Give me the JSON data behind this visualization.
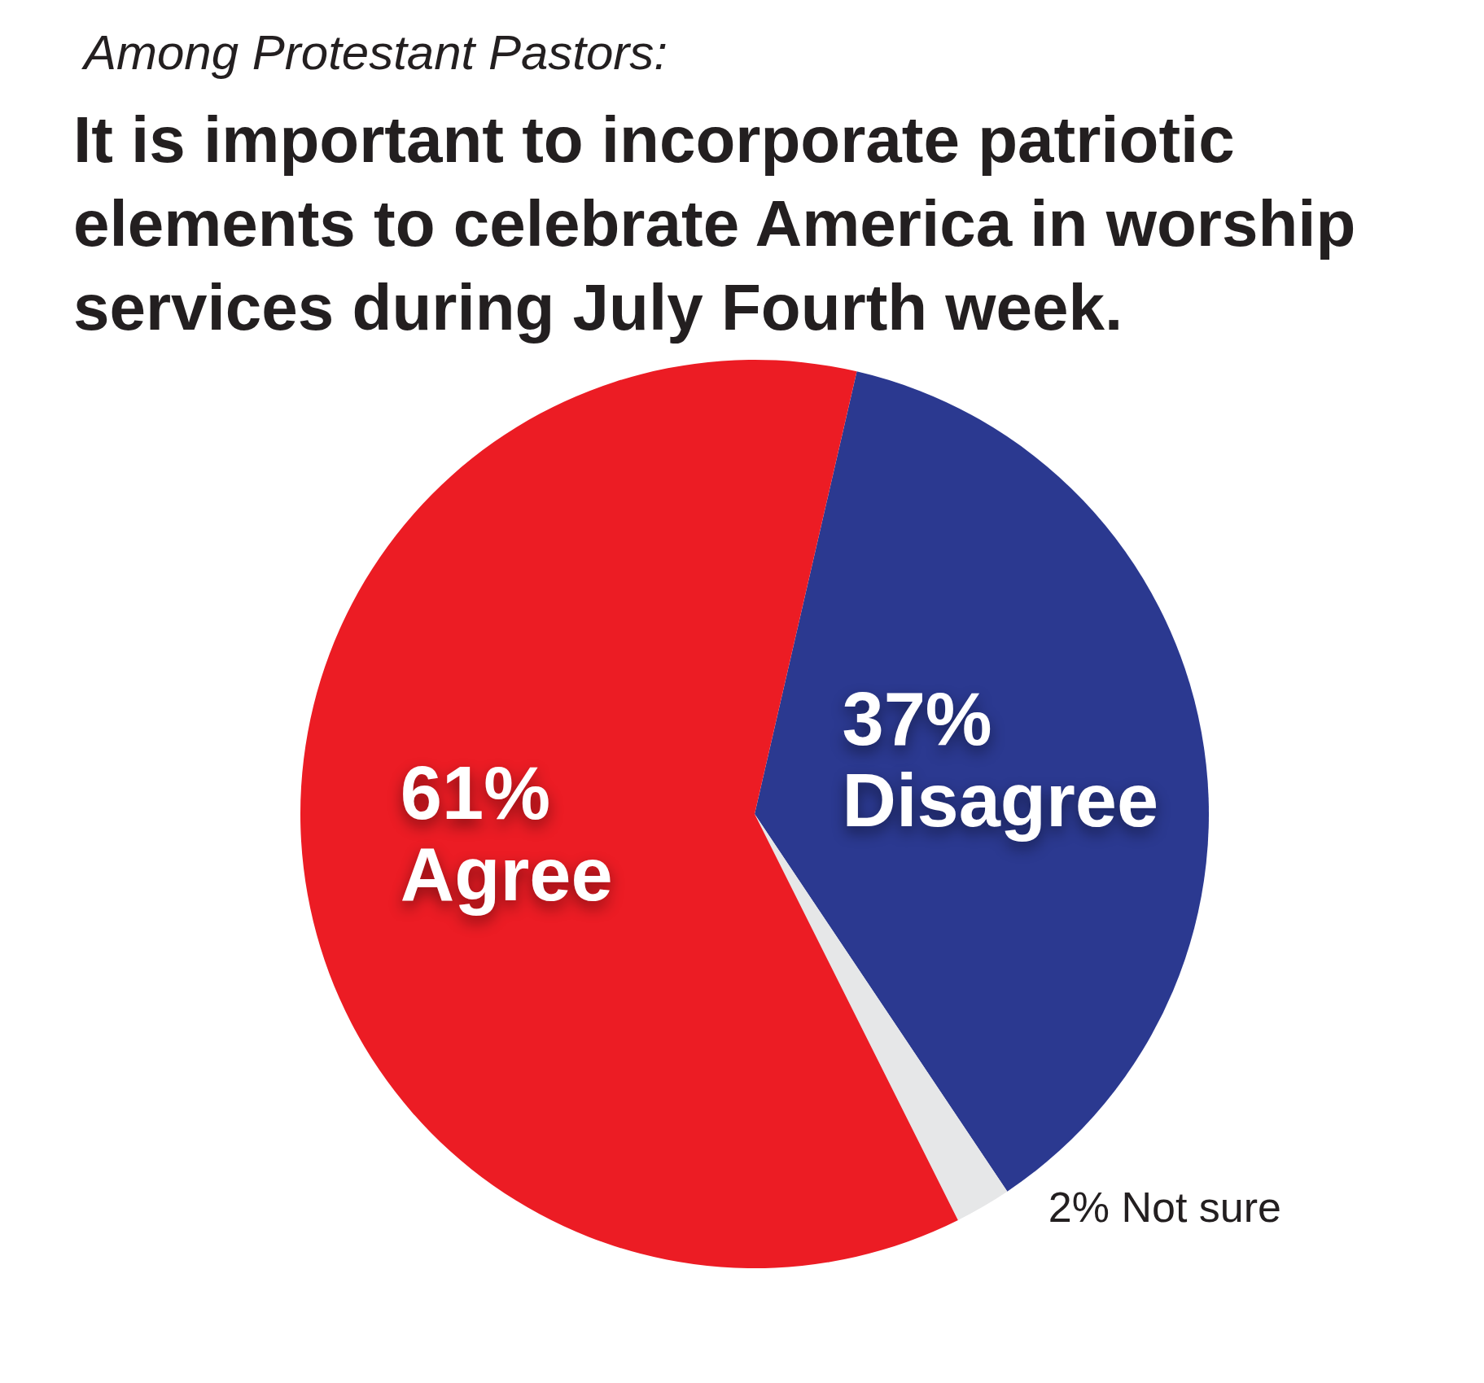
{
  "chart_data": {
    "type": "pie",
    "subtitle": "Among Protestant Pastors:",
    "title": "It is important to incorporate patriotic elements to celebrate America in worship services during July Fourth week.",
    "categories": [
      "Disagree",
      "Not sure",
      "Agree"
    ],
    "values": [
      37,
      2,
      61
    ],
    "colors": [
      "#2b3990",
      "#e6e7e8",
      "#ec1c24"
    ],
    "value_labels": [
      "37%",
      "2%",
      "61%"
    ],
    "legend": false
  }
}
